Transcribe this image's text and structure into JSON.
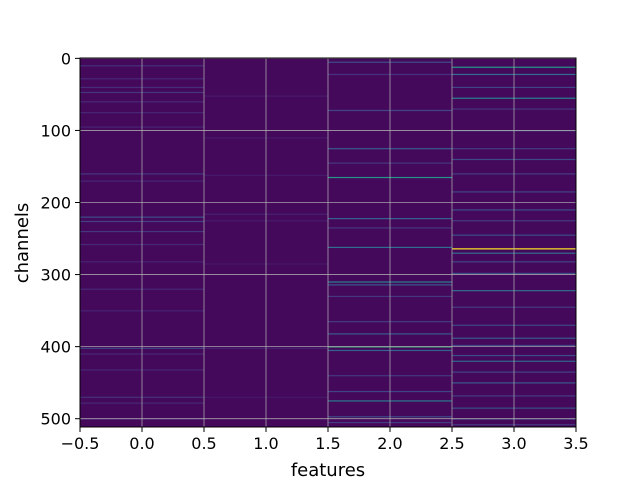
{
  "chart_data": {
    "type": "heatmap",
    "title": "",
    "xlabel": "features",
    "ylabel": "channels",
    "xlim": [
      -0.5,
      3.5
    ],
    "ylim": [
      511.5,
      -0.5
    ],
    "x_ticks": [
      -0.5,
      0.0,
      0.5,
      1.0,
      1.5,
      2.0,
      2.5,
      3.0,
      3.5
    ],
    "x_tick_labels": [
      "−0.5",
      "0.0",
      "0.5",
      "1.0",
      "1.5",
      "2.0",
      "2.5",
      "3.0",
      "3.5"
    ],
    "y_ticks": [
      0,
      100,
      200,
      300,
      400,
      500
    ],
    "y_tick_labels": [
      "0",
      "100",
      "200",
      "300",
      "400",
      "500"
    ],
    "grid": true,
    "colormap": "viridis",
    "background_value": 0.03,
    "columns": [
      {
        "feature": 0,
        "highlights": [
          {
            "channel": 10,
            "value": 0.18
          },
          {
            "channel": 28,
            "value": 0.14
          },
          {
            "channel": 40,
            "value": 0.16
          },
          {
            "channel": 47,
            "value": 0.2
          },
          {
            "channel": 60,
            "value": 0.15
          },
          {
            "channel": 75,
            "value": 0.14
          },
          {
            "channel": 95,
            "value": 0.13
          },
          {
            "channel": 160,
            "value": 0.2
          },
          {
            "channel": 170,
            "value": 0.14
          },
          {
            "channel": 220,
            "value": 0.3
          },
          {
            "channel": 226,
            "value": 0.24
          },
          {
            "channel": 240,
            "value": 0.2
          },
          {
            "channel": 258,
            "value": 0.15
          },
          {
            "channel": 282,
            "value": 0.13
          },
          {
            "channel": 320,
            "value": 0.14
          },
          {
            "channel": 350,
            "value": 0.13
          },
          {
            "channel": 402,
            "value": 0.25
          },
          {
            "channel": 410,
            "value": 0.14
          },
          {
            "channel": 432,
            "value": 0.13
          },
          {
            "channel": 470,
            "value": 0.18
          },
          {
            "channel": 478,
            "value": 0.14
          },
          {
            "channel": 500,
            "value": 0.13
          }
        ]
      },
      {
        "feature": 1,
        "highlights": [
          {
            "channel": 52,
            "value": 0.1
          },
          {
            "channel": 110,
            "value": 0.09
          },
          {
            "channel": 162,
            "value": 0.09
          },
          {
            "channel": 216,
            "value": 0.12
          },
          {
            "channel": 225,
            "value": 0.1
          },
          {
            "channel": 285,
            "value": 0.09
          },
          {
            "channel": 402,
            "value": 0.12
          },
          {
            "channel": 470,
            "value": 0.09
          }
        ]
      },
      {
        "feature": 2,
        "highlights": [
          {
            "channel": 5,
            "value": 0.3
          },
          {
            "channel": 22,
            "value": 0.18
          },
          {
            "channel": 72,
            "value": 0.25
          },
          {
            "channel": 125,
            "value": 0.35
          },
          {
            "channel": 145,
            "value": 0.2
          },
          {
            "channel": 165,
            "value": 0.65
          },
          {
            "channel": 222,
            "value": 0.4
          },
          {
            "channel": 235,
            "value": 0.2
          },
          {
            "channel": 262,
            "value": 0.45
          },
          {
            "channel": 310,
            "value": 0.55
          },
          {
            "channel": 314,
            "value": 0.35
          },
          {
            "channel": 330,
            "value": 0.2
          },
          {
            "channel": 365,
            "value": 0.22
          },
          {
            "channel": 382,
            "value": 0.35
          },
          {
            "channel": 400,
            "value": 0.75
          },
          {
            "channel": 405,
            "value": 0.4
          },
          {
            "channel": 440,
            "value": 0.2
          },
          {
            "channel": 462,
            "value": 0.25
          },
          {
            "channel": 475,
            "value": 0.5
          },
          {
            "channel": 497,
            "value": 0.28
          },
          {
            "channel": 505,
            "value": 0.22
          }
        ]
      },
      {
        "feature": 3,
        "highlights": [
          {
            "channel": 12,
            "value": 0.65
          },
          {
            "channel": 22,
            "value": 0.45
          },
          {
            "channel": 40,
            "value": 0.25
          },
          {
            "channel": 55,
            "value": 0.55
          },
          {
            "channel": 70,
            "value": 0.2
          },
          {
            "channel": 100,
            "value": 0.3
          },
          {
            "channel": 125,
            "value": 0.22
          },
          {
            "channel": 140,
            "value": 0.28
          },
          {
            "channel": 160,
            "value": 0.22
          },
          {
            "channel": 185,
            "value": 0.25
          },
          {
            "channel": 210,
            "value": 0.3
          },
          {
            "channel": 225,
            "value": 0.22
          },
          {
            "channel": 245,
            "value": 0.3
          },
          {
            "channel": 264,
            "value": 1.0
          },
          {
            "channel": 270,
            "value": 0.45
          },
          {
            "channel": 282,
            "value": 0.25
          },
          {
            "channel": 298,
            "value": 0.3
          },
          {
            "channel": 322,
            "value": 0.45
          },
          {
            "channel": 345,
            "value": 0.22
          },
          {
            "channel": 370,
            "value": 0.28
          },
          {
            "channel": 388,
            "value": 0.35
          },
          {
            "channel": 398,
            "value": 0.25
          },
          {
            "channel": 412,
            "value": 0.3
          },
          {
            "channel": 420,
            "value": 0.42
          },
          {
            "channel": 435,
            "value": 0.25
          },
          {
            "channel": 450,
            "value": 0.35
          },
          {
            "channel": 468,
            "value": 0.22
          },
          {
            "channel": 485,
            "value": 0.3
          },
          {
            "channel": 500,
            "value": 0.28
          },
          {
            "channel": 508,
            "value": 0.2
          }
        ]
      }
    ]
  }
}
